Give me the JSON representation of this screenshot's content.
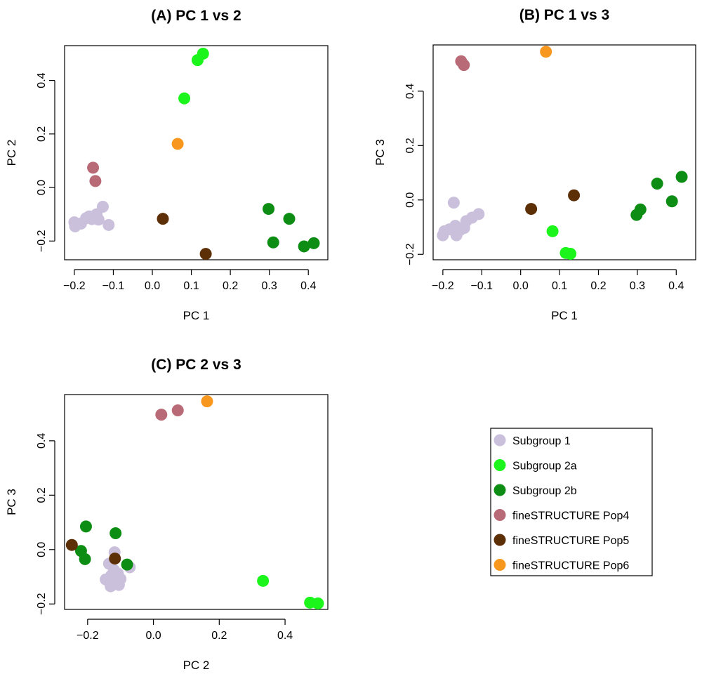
{
  "chart_data": [
    {
      "type": "scatter",
      "title": "(A) PC 1 vs 2",
      "xlabel": "PC 1",
      "ylabel": "PC 2",
      "xlim": [
        -0.225,
        0.45
      ],
      "ylim": [
        -0.27,
        0.53
      ],
      "xticks": [
        -0.2,
        -0.1,
        0.0,
        0.1,
        0.2,
        0.3,
        0.4
      ],
      "xtick_labels": [
        "−0.2",
        "−0.1",
        "0.0",
        "0.1",
        "0.2",
        "0.3",
        "0.4"
      ],
      "yticks": [
        -0.2,
        0.0,
        0.2,
        0.4
      ],
      "ytick_labels": [
        "−0.2",
        "0.0",
        "0.2",
        "0.4"
      ],
      "series": [
        {
          "name": "Subgroup 1",
          "points": [
            [
              -0.2,
              -0.13
            ],
            [
              -0.198,
              -0.145
            ],
            [
              -0.183,
              -0.135
            ],
            [
              -0.17,
              -0.115
            ],
            [
              -0.162,
              -0.108
            ],
            [
              -0.155,
              -0.118
            ],
            [
              -0.143,
              -0.1
            ],
            [
              -0.138,
              -0.12
            ],
            [
              -0.127,
              -0.072
            ],
            [
              -0.112,
              -0.14
            ]
          ]
        },
        {
          "name": "Subgroup 2a",
          "points": [
            [
              0.082,
              0.333
            ],
            [
              0.116,
              0.476
            ],
            [
              0.13,
              0.5
            ]
          ]
        },
        {
          "name": "Subgroup 2b",
          "points": [
            [
              0.298,
              -0.08
            ],
            [
              0.31,
              -0.205
            ],
            [
              0.351,
              -0.117
            ],
            [
              0.389,
              -0.22
            ],
            [
              0.414,
              -0.208
            ]
          ]
        },
        {
          "name": "fineSTRUCTURE Pop4",
          "points": [
            [
              -0.152,
              0.074
            ],
            [
              -0.146,
              0.024
            ]
          ]
        },
        {
          "name": "fineSTRUCTURE Pop5",
          "points": [
            [
              0.027,
              -0.117
            ],
            [
              0.137,
              -0.248
            ]
          ]
        },
        {
          "name": "fineSTRUCTURE Pop6",
          "points": [
            [
              0.065,
              0.163
            ]
          ]
        }
      ]
    },
    {
      "type": "scatter",
      "title": "(B) PC 1 vs 3",
      "xlabel": "PC 1",
      "ylabel": "PC 3",
      "xlim": [
        -0.225,
        0.45
      ],
      "ylim": [
        -0.22,
        0.57
      ],
      "xticks": [
        -0.2,
        -0.1,
        0.0,
        0.1,
        0.2,
        0.3,
        0.4
      ],
      "xtick_labels": [
        "−0.2",
        "−0.1",
        "0.0",
        "0.1",
        "0.2",
        "0.3",
        "0.4"
      ],
      "yticks": [
        -0.2,
        0.0,
        0.2,
        0.4
      ],
      "ytick_labels": [
        "−0.2",
        "0.0",
        "0.2",
        "0.4"
      ],
      "series": [
        {
          "name": "Subgroup 1",
          "points": [
            [
              -0.2,
              -0.13
            ],
            [
              -0.196,
              -0.115
            ],
            [
              -0.183,
              -0.108
            ],
            [
              -0.172,
              -0.01
            ],
            [
              -0.168,
              -0.095
            ],
            [
              -0.165,
              -0.13
            ],
            [
              -0.155,
              -0.11
            ],
            [
              -0.145,
              -0.103
            ],
            [
              -0.14,
              -0.078
            ],
            [
              -0.125,
              -0.065
            ],
            [
              -0.108,
              -0.052
            ]
          ]
        },
        {
          "name": "Subgroup 2a",
          "points": [
            [
              0.082,
              -0.115
            ],
            [
              0.116,
              -0.195
            ],
            [
              0.128,
              -0.198
            ]
          ]
        },
        {
          "name": "Subgroup 2b",
          "points": [
            [
              0.298,
              -0.055
            ],
            [
              0.308,
              -0.035
            ],
            [
              0.351,
              0.06
            ],
            [
              0.389,
              -0.005
            ],
            [
              0.414,
              0.085
            ]
          ]
        },
        {
          "name": "fineSTRUCTURE Pop4",
          "points": [
            [
              -0.153,
              0.51
            ],
            [
              -0.146,
              0.496
            ]
          ]
        },
        {
          "name": "fineSTRUCTURE Pop5",
          "points": [
            [
              0.027,
              -0.033
            ],
            [
              0.137,
              0.017
            ]
          ]
        },
        {
          "name": "fineSTRUCTURE Pop6",
          "points": [
            [
              0.065,
              0.545
            ]
          ]
        }
      ]
    },
    {
      "type": "scatter",
      "title": "(C) PC 2 vs 3",
      "xlabel": "PC 2",
      "ylabel": "PC 3",
      "xlim": [
        -0.27,
        0.53
      ],
      "ylim": [
        -0.22,
        0.57
      ],
      "xticks": [
        -0.2,
        0.0,
        0.2,
        0.4
      ],
      "xtick_labels": [
        "−0.2",
        "0.0",
        "0.2",
        "0.4"
      ],
      "yticks": [
        -0.2,
        0.0,
        0.2,
        0.4
      ],
      "ytick_labels": [
        "−0.2",
        "0.0",
        "0.2",
        "0.4"
      ],
      "series": [
        {
          "name": "Subgroup 1",
          "points": [
            [
              -0.145,
              -0.11
            ],
            [
              -0.135,
              -0.052
            ],
            [
              -0.13,
              -0.135
            ],
            [
              -0.128,
              -0.095
            ],
            [
              -0.12,
              -0.075
            ],
            [
              -0.118,
              -0.01
            ],
            [
              -0.115,
              -0.118
            ],
            [
              -0.108,
              -0.088
            ],
            [
              -0.105,
              -0.13
            ],
            [
              -0.1,
              -0.108
            ],
            [
              -0.072,
              -0.065
            ]
          ]
        },
        {
          "name": "Subgroup 2a",
          "points": [
            [
              0.333,
              -0.115
            ],
            [
              0.476,
              -0.195
            ],
            [
              0.5,
              -0.198
            ]
          ]
        },
        {
          "name": "Subgroup 2b",
          "points": [
            [
              -0.22,
              -0.005
            ],
            [
              -0.208,
              -0.035
            ],
            [
              -0.205,
              0.085
            ],
            [
              -0.115,
              0.06
            ],
            [
              -0.08,
              -0.055
            ]
          ]
        },
        {
          "name": "fineSTRUCTURE Pop4",
          "points": [
            [
              0.024,
              0.496
            ],
            [
              0.074,
              0.512
            ]
          ]
        },
        {
          "name": "fineSTRUCTURE Pop5",
          "points": [
            [
              -0.248,
              0.017
            ],
            [
              -0.117,
              -0.033
            ]
          ]
        },
        {
          "name": "fineSTRUCTURE Pop6",
          "points": [
            [
              0.163,
              0.545
            ]
          ]
        }
      ]
    }
  ],
  "legend": {
    "placement": "bottom-right",
    "entries": [
      {
        "label": "Subgroup 1",
        "color": "#cac0dc"
      },
      {
        "label": "Subgroup 2a",
        "color": "#1bf51b"
      },
      {
        "label": "Subgroup 2b",
        "color": "#0d8d13"
      },
      {
        "label": "fineSTRUCTURE Pop4",
        "color": "#b96a77"
      },
      {
        "label": "fineSTRUCTURE Pop5",
        "color": "#5c2f07"
      },
      {
        "label": "fineSTRUCTURE Pop6",
        "color": "#f7971e"
      }
    ]
  }
}
